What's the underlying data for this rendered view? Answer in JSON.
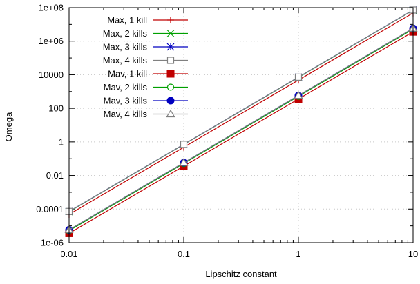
{
  "chart_data": {
    "type": "line",
    "xlabel": "Lipschitz constant",
    "ylabel": "Omega",
    "xscale": "log",
    "yscale": "log",
    "xlim": [
      0.01,
      10
    ],
    "ylim": [
      1e-06,
      100000000
    ],
    "x_ticks": [
      {
        "value": 0.01,
        "label": "0.01"
      },
      {
        "value": 0.1,
        "label": "0.1"
      },
      {
        "value": 1,
        "label": "1"
      },
      {
        "value": 10,
        "label": "10"
      }
    ],
    "y_ticks": [
      {
        "value": 1e-06,
        "label": "1e-06"
      },
      {
        "value": 0.0001,
        "label": "0.0001"
      },
      {
        "value": 0.01,
        "label": "0.01"
      },
      {
        "value": 1,
        "label": "1"
      },
      {
        "value": 100,
        "label": "100"
      },
      {
        "value": 10000,
        "label": "10000"
      },
      {
        "value": 1000000,
        "label": "1e+06"
      },
      {
        "value": 100000000,
        "label": "1e+08"
      }
    ],
    "grid": true,
    "legend_position": "top-left",
    "x": [
      0.01,
      0.1,
      1,
      10
    ],
    "series": [
      {
        "name": "Max, 1 kill",
        "color": "#c00000",
        "marker": "plus",
        "values": [
          4.8e-05,
          0.48,
          4800,
          48000000
        ]
      },
      {
        "name": "Max, 2 kills",
        "color": "#00a000",
        "marker": "cross",
        "values": [
          7e-05,
          0.7,
          7000,
          70000000
        ]
      },
      {
        "name": "Max, 3 kills",
        "color": "#0000c0",
        "marker": "star",
        "values": [
          7.2e-05,
          0.72,
          7200,
          72000000
        ]
      },
      {
        "name": "Max, 4 kills",
        "color": "#808080",
        "marker": "square-open",
        "values": [
          7.2e-05,
          0.72,
          7200,
          72000000
        ]
      },
      {
        "name": "Mav, 1 kill",
        "color": "#c00000",
        "marker": "square-filled",
        "values": [
          3.6e-06,
          0.036,
          360,
          3600000
        ]
      },
      {
        "name": "Mav, 2 kills",
        "color": "#00a000",
        "marker": "circle-open",
        "values": [
          5.2e-06,
          0.052,
          520,
          5200000
        ]
      },
      {
        "name": "Mav, 3 kills",
        "color": "#0000c0",
        "marker": "circle-filled",
        "values": [
          5.8e-06,
          0.058,
          580,
          5800000
        ]
      },
      {
        "name": "Mav, 4 kills",
        "color": "#808080",
        "marker": "triangle-open",
        "values": [
          5.8e-06,
          0.058,
          580,
          5800000
        ]
      }
    ]
  }
}
